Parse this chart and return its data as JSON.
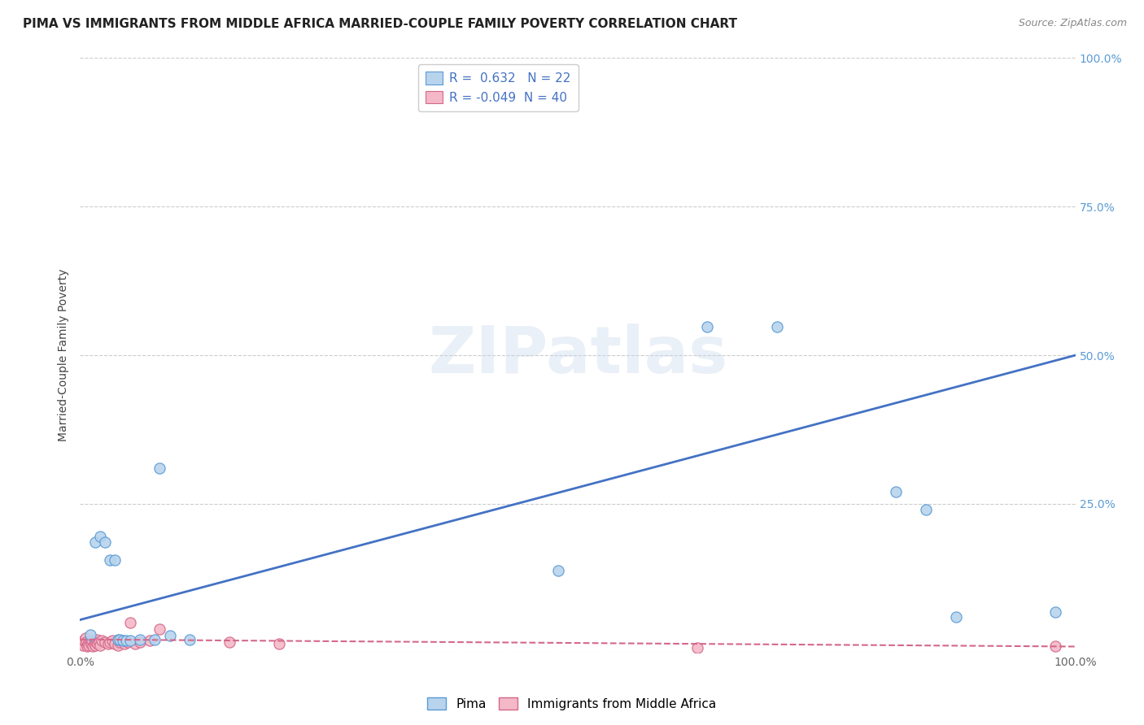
{
  "title": "PIMA VS IMMIGRANTS FROM MIDDLE AFRICA MARRIED-COUPLE FAMILY POVERTY CORRELATION CHART",
  "source": "Source: ZipAtlas.com",
  "ylabel": "Married-Couple Family Poverty",
  "watermark": "ZIPatlas",
  "pima_color": "#b8d4ed",
  "pima_edge_color": "#5b9bd5",
  "immigrant_color": "#f4b8c8",
  "immigrant_edge_color": "#d4688a",
  "line_blue": "#4472c4",
  "line_pink": "#d4688a",
  "pima_scatter": [
    [
      0.01,
      0.03
    ],
    [
      0.015,
      0.185
    ],
    [
      0.02,
      0.195
    ],
    [
      0.025,
      0.185
    ],
    [
      0.03,
      0.155
    ],
    [
      0.035,
      0.155
    ],
    [
      0.038,
      0.022
    ],
    [
      0.04,
      0.022
    ],
    [
      0.043,
      0.02
    ],
    [
      0.046,
      0.02
    ],
    [
      0.05,
      0.02
    ],
    [
      0.06,
      0.022
    ],
    [
      0.075,
      0.022
    ],
    [
      0.08,
      0.31
    ],
    [
      0.09,
      0.028
    ],
    [
      0.11,
      0.022
    ],
    [
      0.48,
      0.138
    ],
    [
      0.63,
      0.548
    ],
    [
      0.7,
      0.548
    ],
    [
      0.82,
      0.27
    ],
    [
      0.85,
      0.24
    ],
    [
      0.88,
      0.06
    ],
    [
      0.98,
      0.068
    ]
  ],
  "immigrant_scatter": [
    [
      0.0,
      0.018
    ],
    [
      0.002,
      0.015
    ],
    [
      0.003,
      0.012
    ],
    [
      0.004,
      0.02
    ],
    [
      0.005,
      0.025
    ],
    [
      0.006,
      0.018
    ],
    [
      0.007,
      0.01
    ],
    [
      0.008,
      0.015
    ],
    [
      0.009,
      0.012
    ],
    [
      0.01,
      0.018
    ],
    [
      0.011,
      0.015
    ],
    [
      0.012,
      0.02
    ],
    [
      0.013,
      0.01
    ],
    [
      0.014,
      0.015
    ],
    [
      0.015,
      0.012
    ],
    [
      0.016,
      0.018
    ],
    [
      0.017,
      0.022
    ],
    [
      0.018,
      0.015
    ],
    [
      0.019,
      0.018
    ],
    [
      0.02,
      0.012
    ],
    [
      0.022,
      0.02
    ],
    [
      0.025,
      0.018
    ],
    [
      0.028,
      0.015
    ],
    [
      0.03,
      0.018
    ],
    [
      0.032,
      0.02
    ],
    [
      0.035,
      0.015
    ],
    [
      0.038,
      0.012
    ],
    [
      0.04,
      0.018
    ],
    [
      0.042,
      0.02
    ],
    [
      0.045,
      0.015
    ],
    [
      0.048,
      0.018
    ],
    [
      0.05,
      0.05
    ],
    [
      0.055,
      0.015
    ],
    [
      0.06,
      0.018
    ],
    [
      0.07,
      0.02
    ],
    [
      0.08,
      0.04
    ],
    [
      0.15,
      0.018
    ],
    [
      0.2,
      0.015
    ],
    [
      0.62,
      0.008
    ],
    [
      0.98,
      0.01
    ]
  ],
  "pima_line_x": [
    0.0,
    1.0
  ],
  "pima_line_y": [
    0.055,
    0.5
  ],
  "immigrant_line_x": [
    0.0,
    1.0
  ],
  "immigrant_line_y": [
    0.022,
    0.01
  ],
  "xlim": [
    0,
    1.0
  ],
  "ylim": [
    0,
    1.0
  ],
  "background_color": "#ffffff",
  "grid_color": "#cccccc",
  "title_fontsize": 11,
  "axis_fontsize": 10,
  "tick_fontsize": 10
}
